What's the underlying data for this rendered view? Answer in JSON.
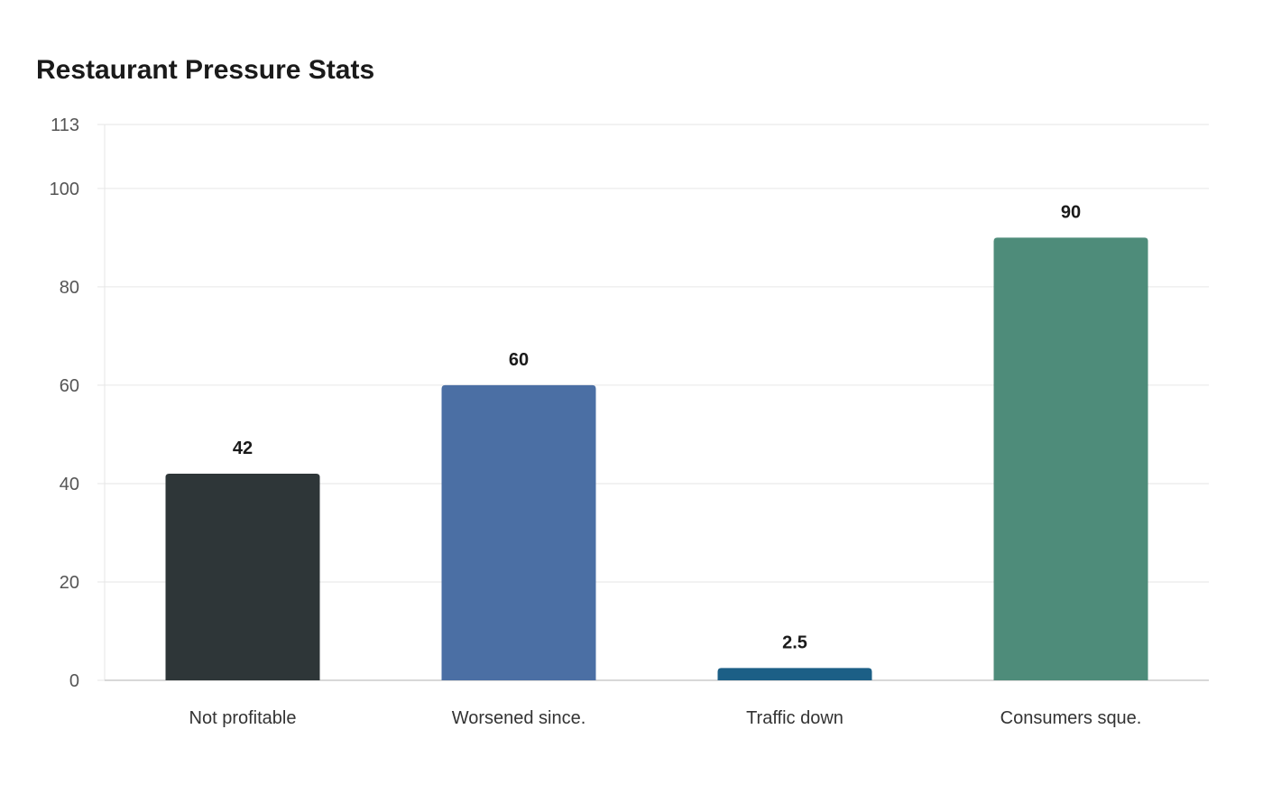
{
  "chart_data": {
    "type": "bar",
    "title": "Restaurant Pressure Stats",
    "xlabel": "",
    "ylabel": "",
    "categories": [
      "Not profitable",
      "Worsened since.",
      "Traffic down",
      "Consumers sque."
    ],
    "values": [
      42,
      60,
      2.5,
      90
    ],
    "data_labels": [
      "42",
      "60",
      "2.5",
      "90"
    ],
    "colors": [
      "#2e3638",
      "#4b6fa4",
      "#1c5f86",
      "#4e8c7a"
    ],
    "ylim": [
      0,
      113
    ],
    "yticks": [
      0,
      20,
      40,
      60,
      80,
      100,
      113
    ],
    "grid": true,
    "legend": "none"
  }
}
